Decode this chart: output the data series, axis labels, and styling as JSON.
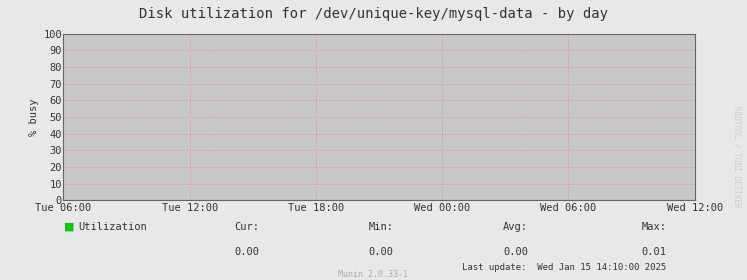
{
  "title": "Disk utilization for /dev/unique-key/mysql-data - by day",
  "ylabel": "% busy",
  "background_color": "#e8e8e8",
  "plot_bg_color": "#c8c8c8",
  "grid_color": "#ff8080",
  "grid_color_minor": "#c0b0b0",
  "line_color": "#00cc00",
  "fill_color": "#00cc00",
  "border_color": "#666666",
  "x_tick_labels": [
    "Tue 06:00",
    "Tue 12:00",
    "Tue 18:00",
    "Wed 00:00",
    "Wed 06:00",
    "Wed 12:00"
  ],
  "x_tick_positions": [
    0.0,
    0.25,
    0.5,
    0.75,
    1.0,
    1.25
  ],
  "ylim": [
    0,
    100
  ],
  "yticks": [
    0,
    10,
    20,
    30,
    40,
    50,
    60,
    70,
    80,
    90,
    100
  ],
  "legend_label": "Utilization",
  "legend_color": "#00cc00",
  "cur_val": "0.00",
  "min_val": "0.00",
  "avg_val": "0.00",
  "max_val": "0.01",
  "last_update": "Last update:  Wed Jan 15 14:10:00 2025",
  "munin_version": "Munin 2.0.33-1",
  "watermark": "RRDTOOL / TOBI OETIKER",
  "title_fontsize": 10,
  "axis_fontsize": 7.5,
  "small_fontsize": 6.5,
  "watermark_fontsize": 5.5
}
